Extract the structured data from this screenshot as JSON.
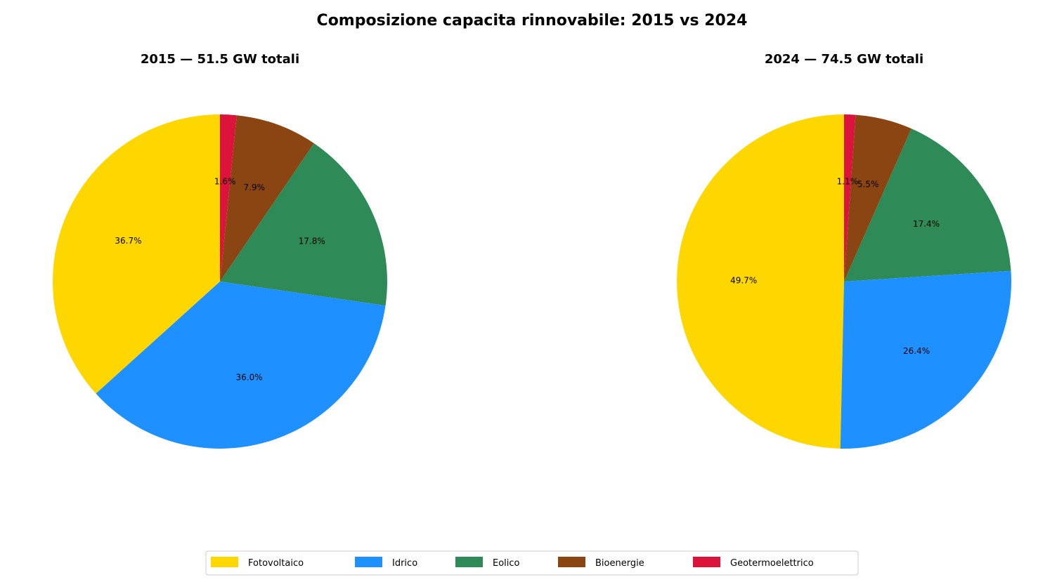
{
  "chart_data": {
    "type": "pie",
    "title": "Composizione capacita rinnovabile: 2015 vs 2024",
    "legend": {
      "placement": "bottom-center",
      "entries": [
        "Fotovoltaico",
        "Idrico",
        "Eolico",
        "Bioenergie",
        "Geotermoelettrico"
      ]
    },
    "colors": {
      "Fotovoltaico": "#FFD700",
      "Idrico": "#1E90FF",
      "Eolico": "#2E8B57",
      "Bioenergie": "#8B4513",
      "Geotermoelettrico": "#DC143C"
    },
    "start_angle_deg": 90,
    "direction": "counterclockwise",
    "charts": [
      {
        "title": "2015 — 51.5 GW totali",
        "total_gw": 51.5,
        "labels": [
          "Fotovoltaico",
          "Idrico",
          "Eolico",
          "Bioenergie",
          "Geotermoelettrico"
        ],
        "values_pct": [
          36.7,
          36.0,
          17.8,
          7.9,
          1.6
        ],
        "value_labels": [
          "36.7%",
          "36.0%",
          "17.8%",
          "7.9%",
          "1.6%"
        ]
      },
      {
        "title": "2024 — 74.5 GW totali",
        "total_gw": 74.5,
        "labels": [
          "Fotovoltaico",
          "Idrico",
          "Eolico",
          "Bioenergie",
          "Geotermoelettrico"
        ],
        "values_pct": [
          49.7,
          26.4,
          17.4,
          5.5,
          1.1
        ],
        "value_labels": [
          "49.7%",
          "26.4%",
          "17.4%",
          "5.5%",
          "1.1%"
        ]
      }
    ]
  }
}
